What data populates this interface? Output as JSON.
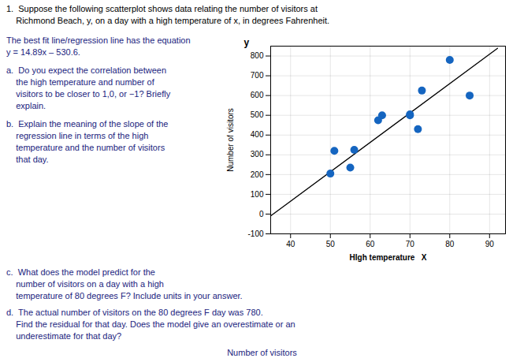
{
  "chart_data": {
    "type": "scatter",
    "xlabel": "HIgh temperature   X",
    "ylabel": "Number of visitors",
    "xlim": [
      35,
      94
    ],
    "xticks": [
      40,
      50,
      60,
      70,
      80,
      90
    ],
    "ylim": [
      -100,
      850
    ],
    "yticks": [
      -100,
      0,
      100,
      200,
      300,
      400,
      500,
      600,
      700,
      800
    ],
    "grid": true,
    "series": [
      {
        "type": "line",
        "color": "#000000",
        "x": [
          35,
          92
        ],
        "values": [
          -9.45,
          839.28
        ]
      },
      {
        "type": "scatter",
        "color": "#1565c0",
        "x": [
          50,
          51,
          55,
          56,
          62,
          63,
          70,
          70,
          72,
          73,
          80,
          85
        ],
        "values": [
          205,
          320,
          235,
          325,
          475,
          500,
          500,
          505,
          430,
          625,
          780,
          600
        ]
      }
    ],
    "annotations": [
      {
        "text": "y",
        "color": "#000000"
      },
      {
        "text": "1.  Suppose the following scatterplot shows data relating the number of visitors at",
        "color": "#000000"
      },
      {
        "text": "    Richmond Beach, y, on a day with a high temperature of x, in degrees Fahrenheit.",
        "color": "#000000"
      },
      {
        "text": "The best fit line/regression line has the equation",
        "color": "#1a237e"
      },
      {
        "text": "y = 14.89x – 530.6.",
        "color": "#1a237e"
      },
      {
        "text": "a.  Do you expect the correlation between",
        "color": "#1a237e"
      },
      {
        "text": "    the high temperature and number of",
        "color": "#1a237e"
      },
      {
        "text": "    visitors to be closer to 1,0, or −1? Briefly",
        "color": "#1a237e"
      },
      {
        "text": "    explain.",
        "color": "#1a237e"
      },
      {
        "text": "b.  Explain the meaning of the slope of the",
        "color": "#1a237e"
      },
      {
        "text": "    regression line in terms of the high",
        "color": "#1a237e"
      },
      {
        "text": "    temperature and the number of visitors",
        "color": "#1a237e"
      },
      {
        "text": "    that day.",
        "color": "#1a237e"
      },
      {
        "text": "c.  What does the model predict for the",
        "color": "#1a237e"
      },
      {
        "text": "    number of visitors on a day with a high",
        "color": "#1a237e"
      },
      {
        "text": "    temperature of 80 degrees F? Include units in your answer.",
        "color": "#1a237e"
      },
      {
        "text": "d.  The actual number of visitors on the 80 degrees F day was 780.",
        "color": "#1a237e"
      },
      {
        "text": "    Find the residual for that day. Does the model give an overestimate or an",
        "color": "#1a237e"
      },
      {
        "text": "    underestimate for that day?",
        "color": "#1a237e"
      },
      {
        "text": "Number of visitors",
        "color": "#1a237e"
      }
    ]
  }
}
